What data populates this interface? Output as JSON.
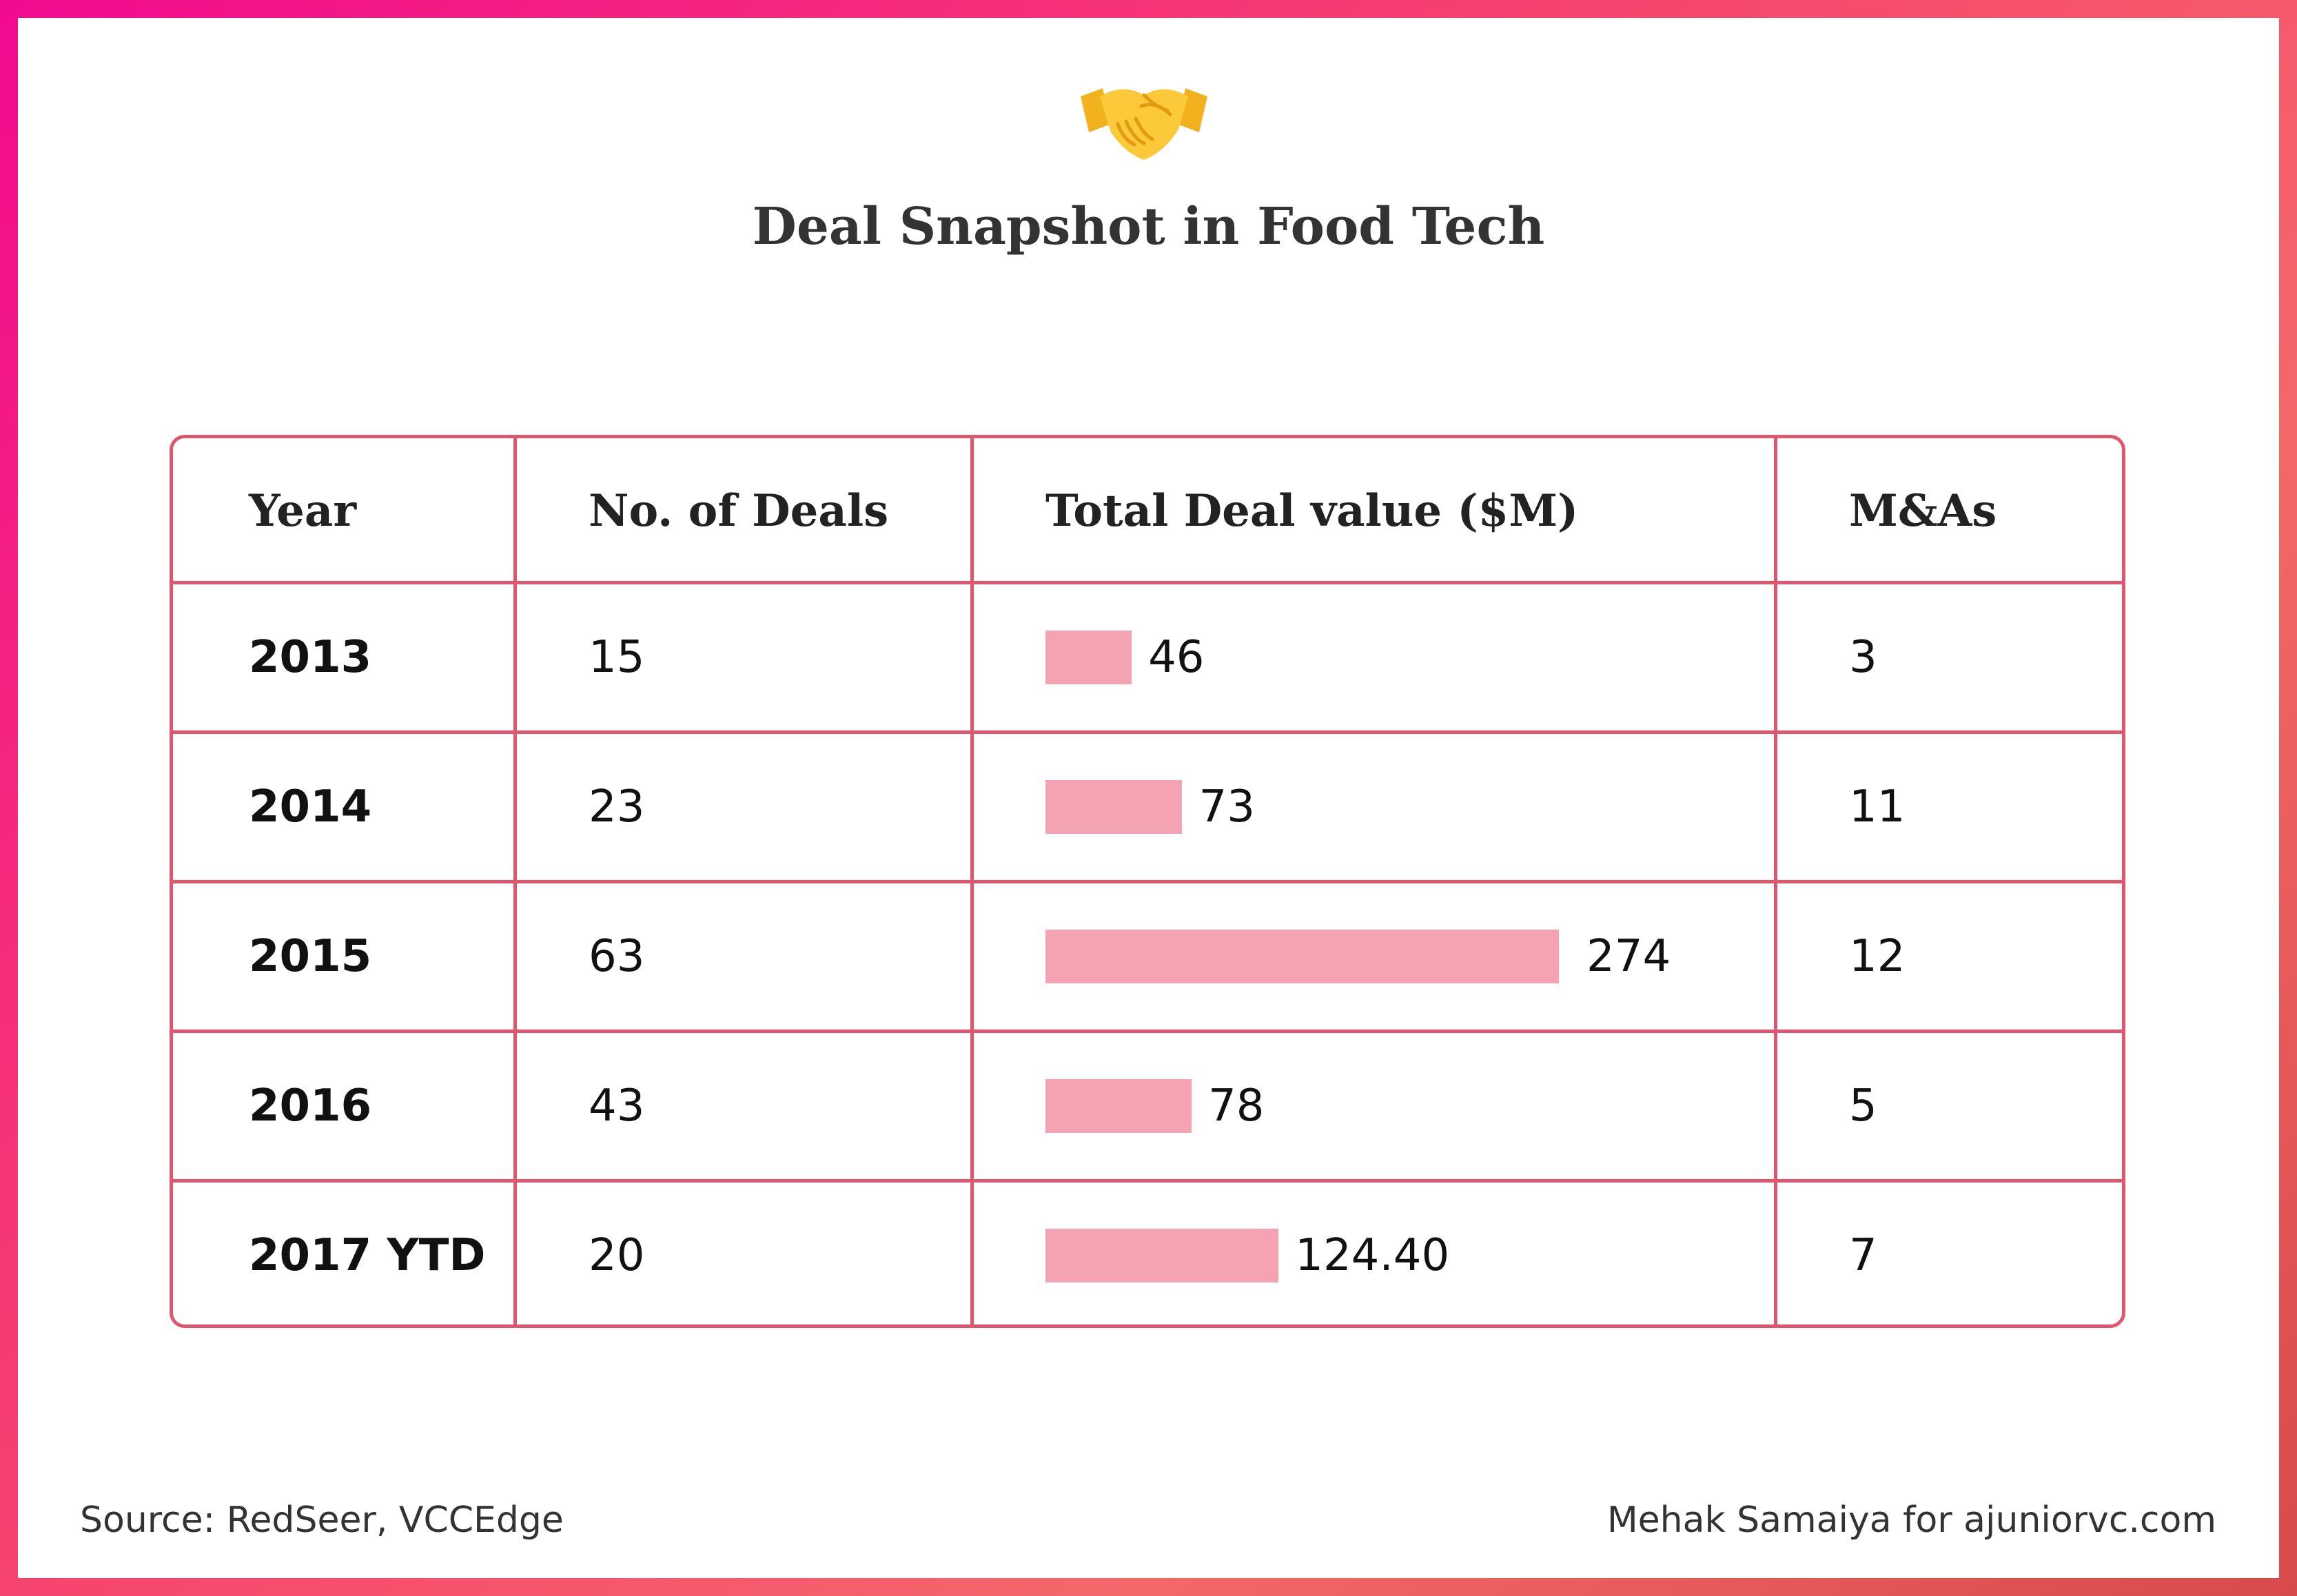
{
  "title": "Deal Snapshot in Food Tech",
  "icon": "handshake-emoji",
  "chart_data": {
    "type": "table",
    "title": "Deal Snapshot in Food Tech",
    "headers": [
      "Year",
      "No. of Deals",
      "Total Deal value ($M)",
      "M&As"
    ],
    "rows": [
      {
        "year": "2013",
        "deals": "15",
        "value": 46,
        "value_label": "46",
        "mas": "3"
      },
      {
        "year": "2014",
        "deals": "23",
        "value": 73,
        "value_label": "73",
        "mas": "11"
      },
      {
        "year": "2015",
        "deals": "63",
        "value": 274,
        "value_label": "274",
        "mas": "12"
      },
      {
        "year": "2016",
        "deals": "43",
        "value": 78,
        "value_label": "78",
        "mas": "5"
      },
      {
        "year": "2017 YTD",
        "deals": "20",
        "value": 124.4,
        "value_label": "124.40",
        "mas": "7"
      }
    ],
    "bar_max": 274
  },
  "footer": {
    "source": "Source: RedSeer, VCCEdge",
    "credit": "Mehak Samaiya for ajuniorvc.com"
  },
  "colors": {
    "border": "#e0566f",
    "bar": "#f5a3b2",
    "frame_start": "#f20a8f",
    "frame_end": "#d94a4a"
  }
}
